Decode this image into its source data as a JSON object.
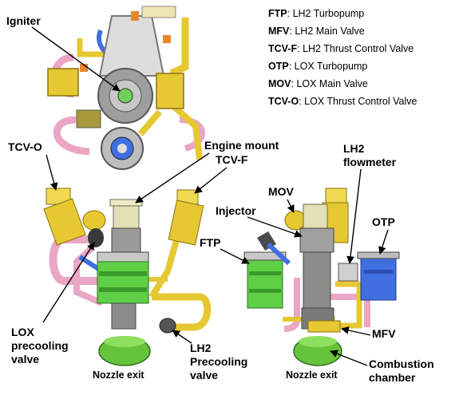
{
  "legend": [
    {
      "abbr": "FTP",
      "sep": ": ",
      "desc": "LH2 Turbopump"
    },
    {
      "abbr": "MFV",
      "sep": ": ",
      "desc": "LH2 Main Valve"
    },
    {
      "abbr": "TCV-F",
      "sep": ": ",
      "desc": "LH2 Thrust Control Valve"
    },
    {
      "abbr": "OTP",
      "sep": ": ",
      "desc": "LOX Turbopump"
    },
    {
      "abbr": "MOV",
      "sep": ": ",
      "desc": "LOX Main Valve"
    },
    {
      "abbr": "TCV-O",
      "sep": ": ",
      "desc": "LOX Thrust Control Valve"
    }
  ],
  "labels": {
    "igniter": "Igniter",
    "tcv_o": "TCV-O",
    "engine_mount": "Engine mount",
    "tcv_f": "TCV-F",
    "lh2_flowmeter_1": "LH2",
    "lh2_flowmeter_2": "flowmeter",
    "mov": "MOV",
    "injector": "Injector",
    "otp": "OTP",
    "ftp": "FTP",
    "lox_precooling_1": "LOX",
    "lox_precooling_2": "precooling",
    "lox_precooling_3": "valve",
    "lh2_precooling_1": "LH2",
    "lh2_precooling_2": "Precooling",
    "lh2_precooling_3": "valve",
    "nozzle_exit_left": "Nozzle exit",
    "nozzle_exit_right": "Nozzle exit",
    "mfv": "MFV",
    "combustion_1": "Combustion",
    "combustion_2": "chamber"
  },
  "colors": {
    "yellow": "#e6c832",
    "yellow_dark": "#b89a18",
    "pink": "#eba5c5",
    "green": "#5fcf48",
    "green_dark": "#3a9a2a",
    "blue": "#3f6fe0",
    "gray": "#8c8c8c",
    "cream": "#e3e0b6",
    "silver": "#c8c8c8"
  }
}
